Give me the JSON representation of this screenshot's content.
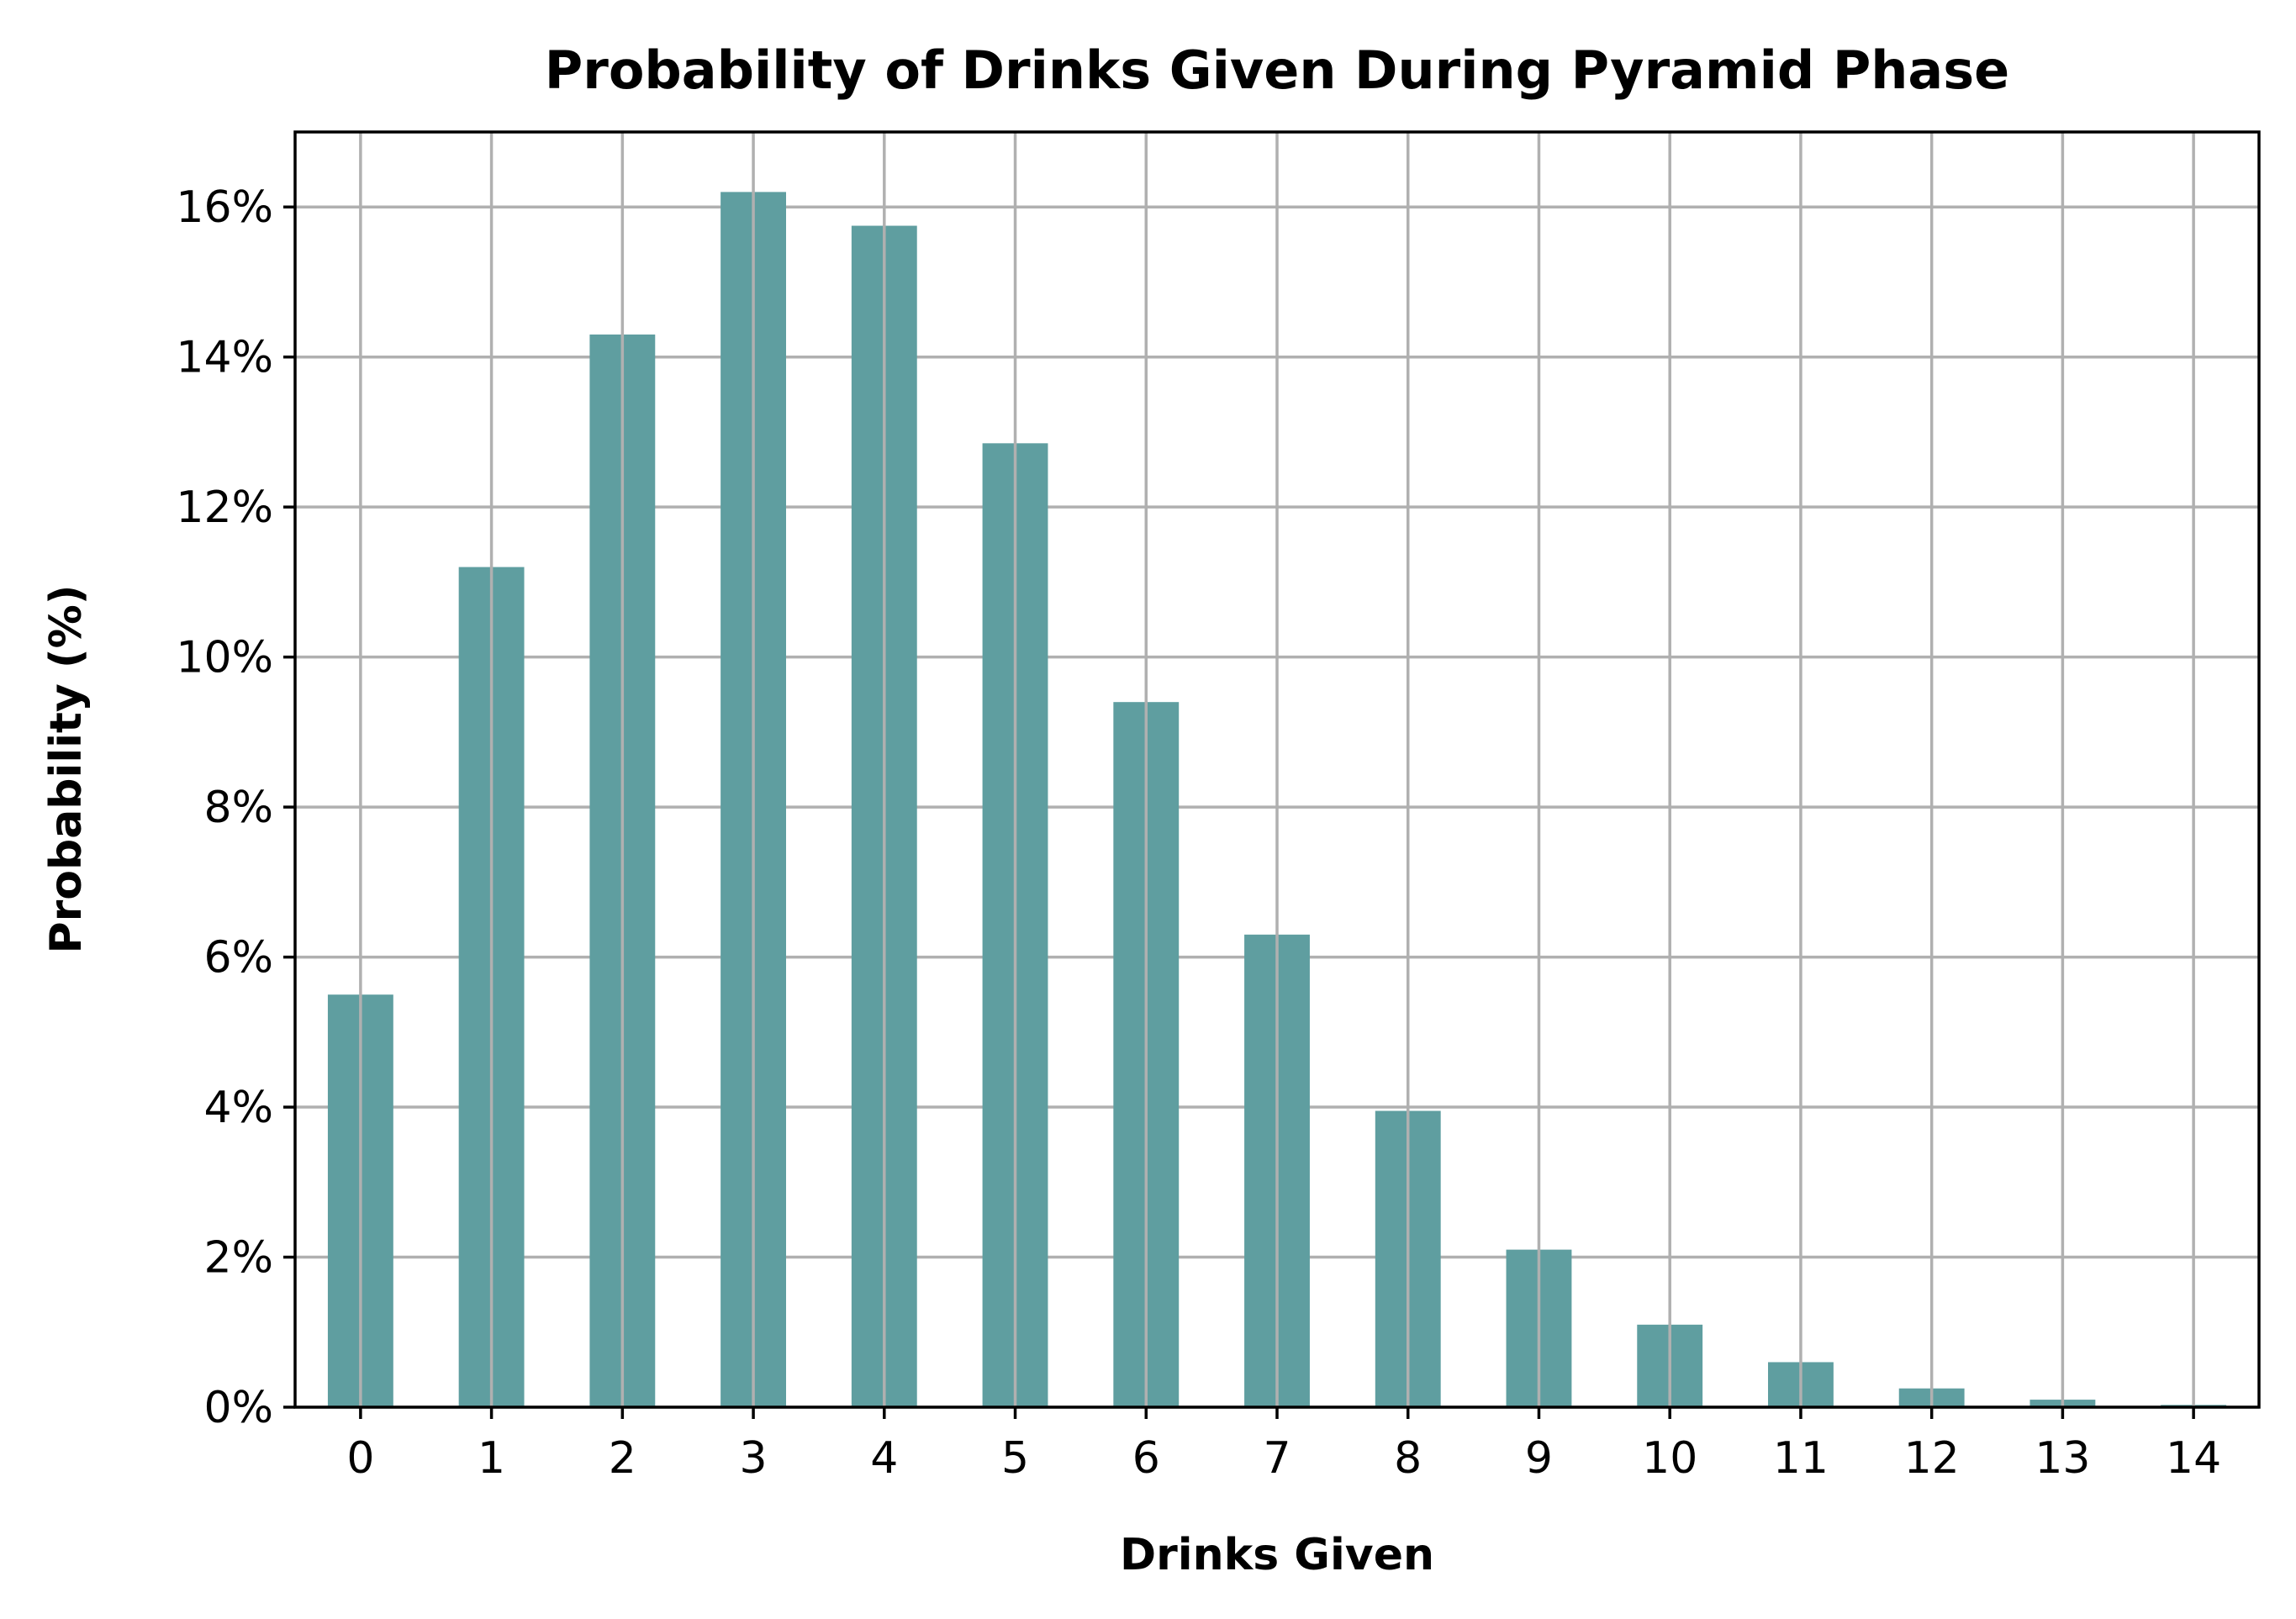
{
  "chart_data": {
    "type": "bar",
    "title": "Probability of Drinks Given During Pyramid Phase",
    "xlabel": "Drinks Given",
    "ylabel": "Probability (%)",
    "categories": [
      "0",
      "1",
      "2",
      "3",
      "4",
      "5",
      "6",
      "7",
      "8",
      "9",
      "10",
      "11",
      "12",
      "13",
      "14"
    ],
    "values": [
      5.5,
      11.2,
      14.3,
      16.2,
      15.75,
      12.85,
      9.4,
      6.3,
      3.95,
      2.1,
      1.1,
      0.6,
      0.25,
      0.1,
      0.03
    ],
    "ylim": [
      0,
      17
    ],
    "yticks": [
      0,
      2,
      4,
      6,
      8,
      10,
      12,
      14,
      16
    ],
    "ytick_labels": [
      "0%",
      "2%",
      "4%",
      "6%",
      "8%",
      "10%",
      "12%",
      "14%",
      "16%"
    ],
    "grid": true,
    "bar_color": "#5f9ea0"
  }
}
